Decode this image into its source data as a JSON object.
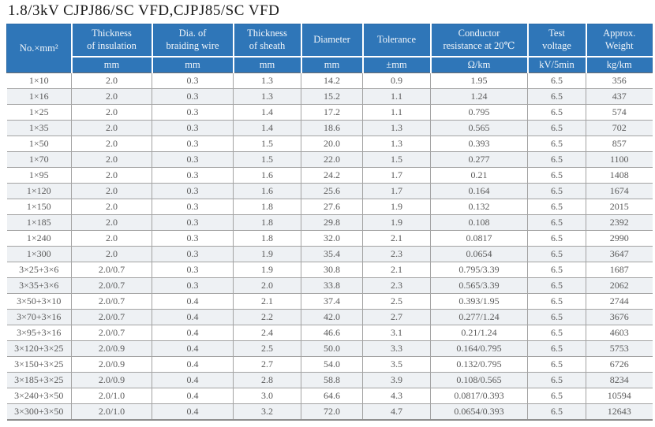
{
  "page": {
    "title": "1.8/3kV CJPJ86/SC VFD,CJPJ85/SC VFD"
  },
  "table": {
    "columns": [
      {
        "label": "No.×mm²",
        "unit": ""
      },
      {
        "label": "Thickness\nof insulation",
        "unit": "mm"
      },
      {
        "label": "Dia. of\nbraiding wire",
        "unit": "mm"
      },
      {
        "label": "Thickness\nof sheath",
        "unit": "mm"
      },
      {
        "label": "Diameter",
        "unit": "mm"
      },
      {
        "label": "Tolerance",
        "unit": "±mm"
      },
      {
        "label": "Conductor\nresistance at 20℃",
        "unit": "Ω/km"
      },
      {
        "label": "Test\nvoltage",
        "unit": "kV/5min"
      },
      {
        "label": "Approx.\nWeight",
        "unit": "kg/km"
      }
    ],
    "rows": [
      [
        "1×10",
        "2.0",
        "0.3",
        "1.3",
        "14.2",
        "0.9",
        "1.95",
        "6.5",
        "356"
      ],
      [
        "1×16",
        "2.0",
        "0.3",
        "1.3",
        "15.2",
        "1.1",
        "1.24",
        "6.5",
        "437"
      ],
      [
        "1×25",
        "2.0",
        "0.3",
        "1.4",
        "17.2",
        "1.1",
        "0.795",
        "6.5",
        "574"
      ],
      [
        "1×35",
        "2.0",
        "0.3",
        "1.4",
        "18.6",
        "1.3",
        "0.565",
        "6.5",
        "702"
      ],
      [
        "1×50",
        "2.0",
        "0.3",
        "1.5",
        "20.0",
        "1.3",
        "0.393",
        "6.5",
        "857"
      ],
      [
        "1×70",
        "2.0",
        "0.3",
        "1.5",
        "22.0",
        "1.5",
        "0.277",
        "6.5",
        "1100"
      ],
      [
        "1×95",
        "2.0",
        "0.3",
        "1.6",
        "24.2",
        "1.7",
        "0.21",
        "6.5",
        "1408"
      ],
      [
        "1×120",
        "2.0",
        "0.3",
        "1.6",
        "25.6",
        "1.7",
        "0.164",
        "6.5",
        "1674"
      ],
      [
        "1×150",
        "2.0",
        "0.3",
        "1.8",
        "27.6",
        "1.9",
        "0.132",
        "6.5",
        "2015"
      ],
      [
        "1×185",
        "2.0",
        "0.3",
        "1.8",
        "29.8",
        "1.9",
        "0.108",
        "6.5",
        "2392"
      ],
      [
        "1×240",
        "2.0",
        "0.3",
        "1.8",
        "32.0",
        "2.1",
        "0.0817",
        "6.5",
        "2990"
      ],
      [
        "1×300",
        "2.0",
        "0.3",
        "1.9",
        "35.4",
        "2.3",
        "0.0654",
        "6.5",
        "3647"
      ],
      [
        "3×25+3×6",
        "2.0/0.7",
        "0.3",
        "1.9",
        "30.8",
        "2.1",
        "0.795/3.39",
        "6.5",
        "1687"
      ],
      [
        "3×35+3×6",
        "2.0/0.7",
        "0.3",
        "2.0",
        "33.8",
        "2.3",
        "0.565/3.39",
        "6.5",
        "2062"
      ],
      [
        "3×50+3×10",
        "2.0/0.7",
        "0.4",
        "2.1",
        "37.4",
        "2.5",
        "0.393/1.95",
        "6.5",
        "2744"
      ],
      [
        "3×70+3×16",
        "2.0/0.7",
        "0.4",
        "2.2",
        "42.0",
        "2.7",
        "0.277/1.24",
        "6.5",
        "3676"
      ],
      [
        "3×95+3×16",
        "2.0/0.7",
        "0.4",
        "2.4",
        "46.6",
        "3.1",
        "0.21/1.24",
        "6.5",
        "4603"
      ],
      [
        "3×120+3×25",
        "2.0/0.9",
        "0.4",
        "2.5",
        "50.0",
        "3.3",
        "0.164/0.795",
        "6.5",
        "5753"
      ],
      [
        "3×150+3×25",
        "2.0/0.9",
        "0.4",
        "2.7",
        "54.0",
        "3.5",
        "0.132/0.795",
        "6.5",
        "6726"
      ],
      [
        "3×185+3×25",
        "2.0/0.9",
        "0.4",
        "2.8",
        "58.8",
        "3.9",
        "0.108/0.565",
        "6.5",
        "8234"
      ],
      [
        "3×240+3×50",
        "2.0/1.0",
        "0.4",
        "3.0",
        "64.6",
        "4.3",
        "0.0817/0.393",
        "6.5",
        "10594"
      ],
      [
        "3×300+3×50",
        "2.0/1.0",
        "0.4",
        "3.2",
        "72.0",
        "4.7",
        "0.0654/0.393",
        "6.5",
        "12643"
      ]
    ]
  },
  "colors": {
    "header_blue": "#2f76b8",
    "alt_row": "#eef1f4",
    "grid_line": "#a3a3a3",
    "body_text": "#5a5a5a"
  }
}
